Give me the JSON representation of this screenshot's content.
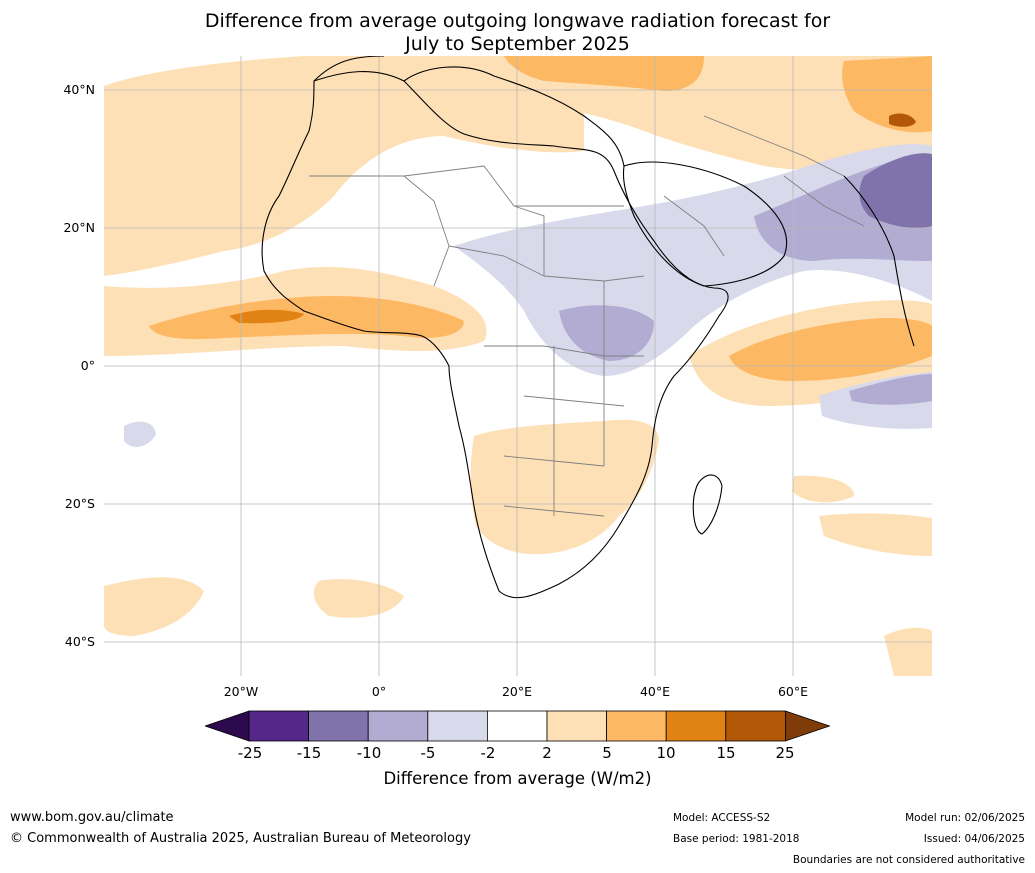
{
  "title": {
    "line1": "Difference from average outgoing longwave radiation forecast for",
    "line2": "July to September 2025"
  },
  "map": {
    "lat_labels": [
      "40°N",
      "20°N",
      "0°",
      "20°S",
      "40°S"
    ],
    "lon_labels": [
      "20°W",
      "0°",
      "20°E",
      "40°E",
      "60°E"
    ]
  },
  "legend": {
    "ticks": [
      "-25",
      "-15",
      "-10",
      "-5",
      "-2",
      "2",
      "5",
      "10",
      "15",
      "25"
    ],
    "colors": [
      "#2d0a4e",
      "#542788",
      "#8073ac",
      "#b2abd2",
      "#d8daeb",
      "#ffffff",
      "#fee0b6",
      "#fdb863",
      "#e08214",
      "#b35806",
      "#7f3b08"
    ],
    "label": "Difference from average (W/m2)"
  },
  "footer": {
    "website": "www.bom.gov.au/climate",
    "copyright": "© Commonwealth of Australia 2025, Australian Bureau of Meteorology",
    "model": "Model: ACCESS-S2",
    "base_period": "Base period: 1981-2018",
    "model_run": "Model run: 02/06/2025",
    "issued": "Issued: 04/06/2025",
    "disclaimer": "Boundaries are not considered authoritative"
  }
}
